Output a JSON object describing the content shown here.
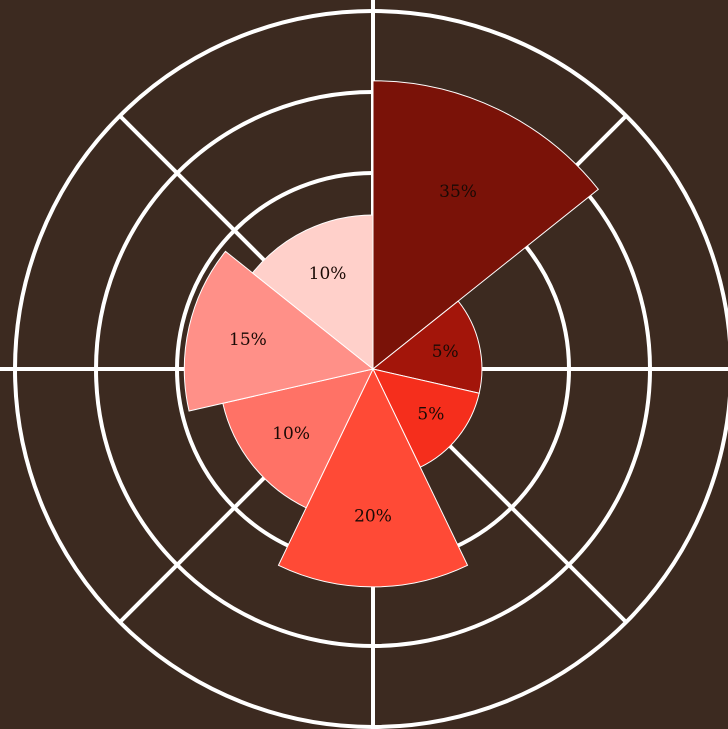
{
  "chart_data": {
    "type": "polar_area",
    "values": [
      35,
      5,
      5,
      20,
      10,
      15,
      10
    ],
    "value_labels": [
      "35%",
      "5%",
      "5%",
      "20%",
      "10%",
      "15%",
      "10%"
    ],
    "colors": [
      "#7a1208",
      "#a3150a",
      "#f52e1c",
      "#ff4a36",
      "#ff7266",
      "#ff9088",
      "#ffd0ca"
    ],
    "rlim": [
      0,
      54
    ]
  }
}
